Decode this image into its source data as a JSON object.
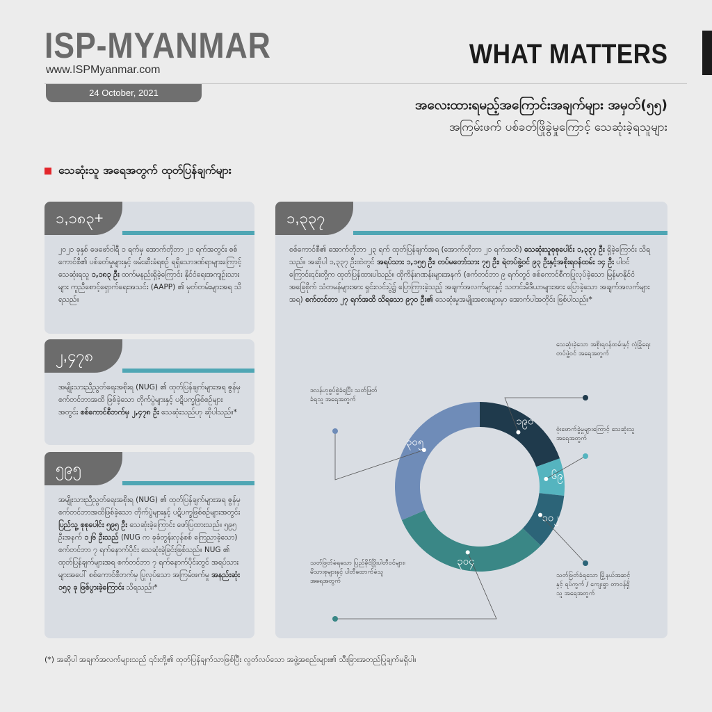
{
  "header": {
    "brand": "ISP-MYANMAR",
    "url": "www.ISPMyanmar.com",
    "date": "24 October, 2021",
    "series": "WHAT MATTERS",
    "title_line1": "အလေးထားရမည့်အကြောင်းအချက်များ အမှတ်(၅၅)",
    "title_line2": "အကြမ်းဖက် ပစ်ခတ်ဖြိုခွဲမှုကြောင့် သေဆုံးခဲ့ရသူများ"
  },
  "section_title": "သေဆုံးသူ အရေအတွက် ထုတ်ပြန်ချက်များ",
  "cards": [
    {
      "number": "၁,၁၈၃+",
      "text_a": "၂၀၂၁ ခုနှစ် ဖေဖော်ဝါရီ ၁ ရက်မှ အောက်တိုဘာ ၂၁ ရက်အတွင်း စစ်ကောင်စီ၏ ပစ်ခတ်မှုများနှင့် ဖမ်းဆီးခံရစဉ် ရရှိသောဒဏ်ရာများကြောင့် သေဆုံးရသူ ",
      "bold_a": "၁,၁၈၃ ဦး",
      "text_b": " ထက်မနည်းရှိခဲ့ကြောင်း နိုင်ငံရေးအကျဉ်းသားများ ကူညီစောင့်ရှောက်ရေးအသင်း (AAPP) ၏ မှတ်တမ်းများအရ သိရသည်။"
    },
    {
      "number": "၂,၄၇၈",
      "text_a": "အမျိုးသားညီညွတ်ရေးအစိုးရ (NUG) ၏ ထုတ်ပြန်ချက်များအရ ဇွန်မှ စက်တင်ဘာအထိ ဖြစ်ခဲ့သော တိုက်ပွဲများနှင့် ပဋိပက္ခဖြစ်စဉ်များအတွင်း ",
      "bold_a": "စစ်ကောင်စီဘက်မှ ၂,၄၇၈ ဦး",
      "text_b": " သေဆုံးသည်ဟု ဆိုပါသည်။*"
    },
    {
      "number": "၅၉၅",
      "text_a": "အမျိုးသားညီညွတ်ရေးအစိုးရ (NUG) ၏ ထုတ်ပြန်ချက်များအရ ဇွန်မှ စက်တင်ဘာအထိဖြစ်ခဲ့သော တိုက်ပွဲများနှင့် ပဋိပက္ခဖြစ်စဉ်များအတွင်း ",
      "bold_a": "ပြည်သူ့ စုစုပေါင်း ၅၉၅ ဦး",
      "text_b": " သေဆုံးခဲ့ကြောင်း ဖော်ပြထားသည်။ ၅၉၅ ဦးအနက် ",
      "bold_b": "၁၂၆ ဦးသည်",
      "text_c": " (NUG က ခုခံတွန်းလှန်စစ် ကြေညာခဲ့သော) စက်တင်ဘာ ၇ ရက်နောက်ပိုင်း သေဆုံးခဲ့ခြင်းဖြစ်သည်။ NUG ၏ ထုတ်ပြန်ချက်များအရ စက်တင်ဘာ ၇ ရက်နောက်ပိုင်းတွင် အရပ်သားများအပေါ် စစ်ကောင်စီဘက်မှ ပြုလုပ်သော အကြမ်းဖက်မှု ",
      "bold_c": "အနည်းဆုံး ၁၅၃ ခု ဖြစ်ပွားခဲ့ကြောင်း",
      "text_d": " သိရသည်။*"
    }
  ],
  "main_card": {
    "number": "၁,၃၃၇",
    "text_a": "စစ်ကောင်စီ၏ အောက်တိုဘာ ၂၃ ရက် ထုတ်ပြန်ချက်အရ (အောက်တိုဘာ ၂၁ ရက်အထိ) ",
    "bold_a": "သေဆုံးသူစုစုပေါင်း ၁,၃၃၇ ဦး",
    "text_b": " ရှိခဲ့ကြောင်း သိရသည်။ အဆိုပါ ၁,၃၃၇ ဦးထဲတွင် ",
    "bold_b": "အရပ်သား ၁,၁၅၅ ဦး၊ တပ်မတော်သား ၇၅ ဦး၊ ရဲတပ်ဖွဲ့ဝင် ၉၃ ဦးနှင့်အစိုးရဝန်ထမ်း ၁၄ ဦး",
    "text_c": " ပါဝင်ကြောင်း၎င်းတို့က ထုတ်ပြန်ထားပါသည်။ ထိုကိန်းဂဏန်းများအနက် (စက်တင်ဘာ ၉ ရက်တွင် စစ်ကောင်စီကပြုလုပ်ခဲ့သော မြန်မာနိုင်ငံအခြေစိုက် သံတမန်များအား ရှင်းလင်းပွဲ၌ ပြောကြားခဲ့သည့် အချက်အလက်များနှင့် သတင်းမီဒီယာများအား ပြောခဲ့သော အချက်အလက်များအရ) ",
    "bold_c": "စက်တင်ဘာ ၂၇ ရက်အထိ သိရသော ၉၇၀ ဦး၏",
    "text_d": " သေဆုံးမှုအမျိုးအစားများမှာ အောက်ပါအတိုင်း ဖြစ်ပါသည်။*"
  },
  "chart_data": {
    "type": "pie",
    "title": "",
    "categories": [
      "သေဆုံးခဲ့သော အစိုးရဝန်ထမ်းနှင့် လုံခြုံရေးတပ်ဖွဲ့ဝင် အရေအတွက်",
      "ဗုံးဖောက်ခွဲမှုများကြောင့် သေဆုံးသူအရေအတွက်",
      "သတ်ဖြတ်ခံရသော မြို့နယ်အဆင့်နှင့် ရပ်ကွက် / ကျေးရွာ တာဝန်ရှိသူ အရေအတွက်",
      "သတ်ဖြတ်ခံရသော ပြည်ခိုင်ဖြိုးပါတီဝင်များ၊ မိသားစုများနှင့် ပါတီထောက်ခံသူ အရေအတွက်",
      "ဒလန်ဟုစွပ်စွဲခံရပြီး သတ်ဖြတ်ခံရသူ အရေအတွက်"
    ],
    "values": [
      190,
      69,
      102,
      304,
      305
    ],
    "value_labels": [
      "၁၉၀",
      "၆၉",
      "၁၀၂",
      "၃၀၄",
      "၃၀၅"
    ],
    "colors": [
      "#1f3a4c",
      "#55b4bf",
      "#2c6478",
      "#3a8786",
      "#6f8cb8"
    ],
    "legend": "callouts"
  },
  "footnote": "(*)  အဆိုပါ အချက်အလက်များသည် ၎င်းတို့၏ ထုတ်ပြန်ချက်သာဖြစ်ပြီး လွတ်လပ်သော အဖွဲ့အစည်းများ၏ သီးခြားအတည်ပြုချက်မရှိပါ။"
}
